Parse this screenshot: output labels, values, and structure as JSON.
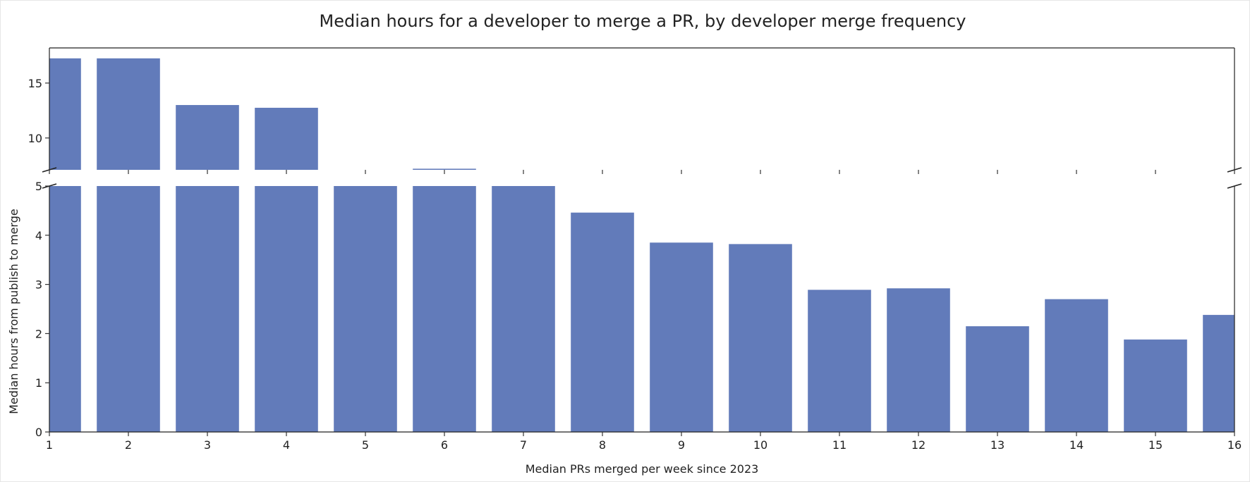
{
  "chart_data": {
    "type": "bar",
    "title": "Median hours for a developer to merge a PR, by developer merge frequency",
    "xlabel": "Median PRs merged per week since 2023",
    "ylabel": "Median hours from publish to merge",
    "categories": [
      1,
      2,
      3,
      4,
      5,
      6,
      7,
      8,
      9,
      10,
      11,
      12,
      13,
      14,
      15,
      16
    ],
    "values": [
      17.25,
      17.25,
      13.0,
      12.75,
      6.0,
      7.2,
      6.0,
      4.46,
      3.85,
      3.82,
      2.89,
      2.92,
      2.15,
      2.7,
      1.88,
      2.38
    ],
    "xlim": [
      1,
      16
    ],
    "broken_y_axis": true,
    "ylim_lower": [
      0,
      5
    ],
    "ylim_upper": [
      7.1,
      18.2
    ],
    "yticks_lower": [
      "0",
      "1",
      "2",
      "3",
      "4",
      "5"
    ],
    "yticks_upper": [
      "10",
      "15"
    ],
    "xticks": [
      "1",
      "2",
      "3",
      "4",
      "5",
      "6",
      "7",
      "8",
      "9",
      "10",
      "11",
      "12",
      "13",
      "14",
      "15",
      "16"
    ],
    "bar_color": "#627bba",
    "grid": false,
    "legend": "none"
  }
}
